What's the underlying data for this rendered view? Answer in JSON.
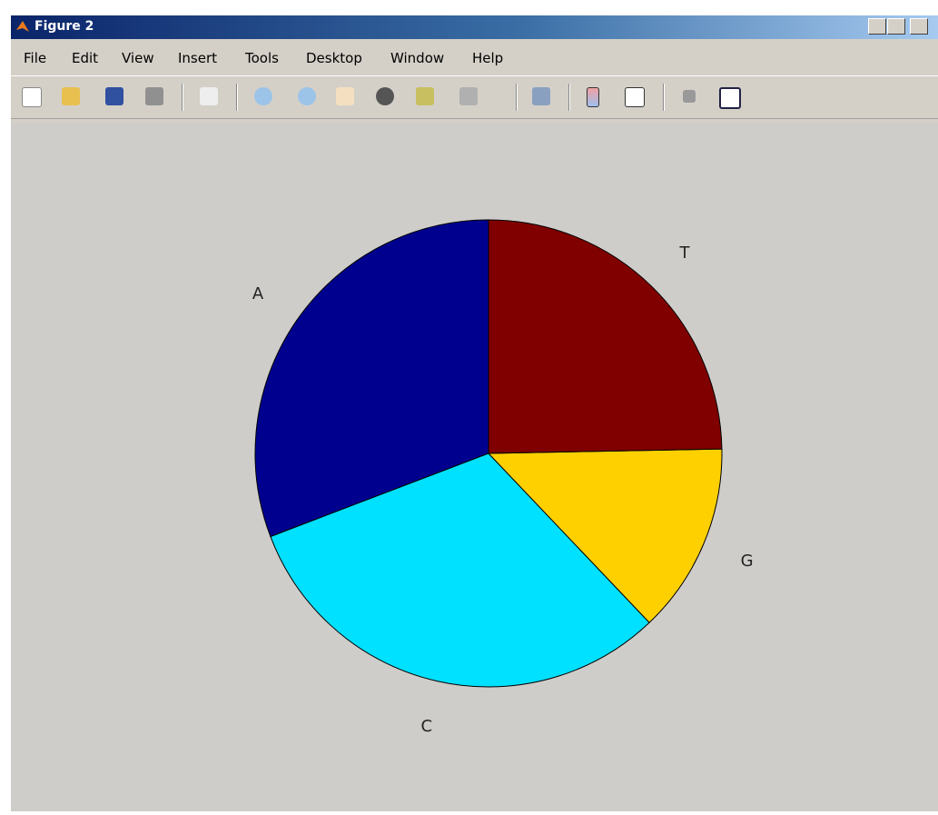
{
  "window": {
    "title": "Figure 2"
  },
  "menu": [
    "File",
    "Edit",
    "View",
    "Insert",
    "Tools",
    "Desktop",
    "Window",
    "Help"
  ],
  "chart_data": {
    "type": "pie",
    "categories": [
      "A",
      "C",
      "G",
      "T"
    ],
    "values": [
      30.8,
      31.3,
      13.2,
      24.7
    ],
    "colors": [
      "#00008f",
      "#00e0ff",
      "#ffd000",
      "#800000"
    ]
  }
}
